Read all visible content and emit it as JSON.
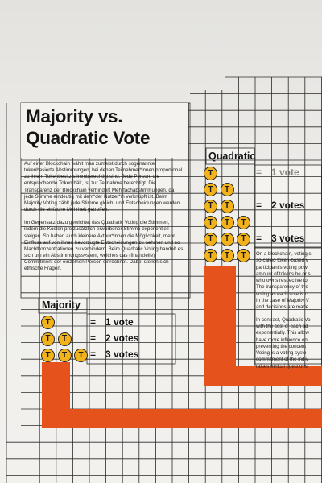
{
  "title": {
    "line1": "Majority vs.",
    "line2": "Quadratic Vote"
  },
  "german_text": [
    "Auf einer Blockchain wählt man zumeist durch sogenannte tokenbasierte Abstimmungen, bei denen Teilnehmer*innen proportional zu ihrem Tokenbesitz stimmberechtigt sind. Jede Person, die entsprechende Token hält, ist zur Teilnahme berechtigt. Die Transparenz der Blockchain verhindert Mehrfachabstimmungen, da jede Stimme eindeutig mit dem*der Nutzer*in verknüpft ist. Beim Majority Voting zählt jede Stimme gleich, und Entscheidungen werden durch die einfache Mehrheit getroffen.",
    "Im Gegensatz dazu gewichtet das Quadratic Voting die Stimmen, indem die Kosten pro zusätzlich erworbener Stimme exponentiell steigen. So haben auch kleinere Akteur*innen die Möglichkeit, mehr Einfluss auf von ihnen bevorzugte Entscheidungen zu nehmen und so Machtkonzentrationen zu verhindern. Beim Quadratic Voting handelt es sich um ein Abstimmungssystem, welches das (finanzielle) Commitment der einzelnen Person einrechnet. Dabei stellen sich ethische Fragen."
  ],
  "english_lines": [
    [
      "On a blockchain, voting s",
      "so-called token-based v",
      "participant's voting pow",
      "amount of tokens he or s",
      "who owns respective to",
      "The transparency of the",
      "voting as each vote is cl",
      "In the case of Majority V",
      "and decisions are made"
    ],
    [
      "In contrast, Quadratic Vo",
      "with the cost of each ad",
      "exponentially. This allow",
      "have more influence on",
      "preventing the concent",
      "Voting is a voting syste",
      "commitment of the indiv",
      "raises ethical questions"
    ]
  ],
  "quadratic": {
    "label": "Quadratic",
    "token_symbol": "T",
    "rows": [
      {
        "tokens": 1,
        "equals": "=",
        "result": "1 vote"
      },
      {
        "tokens": 4,
        "equals": "=",
        "result": "2 votes"
      },
      {
        "tokens": 9,
        "equals": "=",
        "result": "3 votes"
      }
    ]
  },
  "majority": {
    "label": "Majority",
    "token_symbol": "T",
    "rows": [
      {
        "tokens": 1,
        "equals": "=",
        "result": "1 vote"
      },
      {
        "tokens": 2,
        "equals": "=",
        "result": "2 votes"
      },
      {
        "tokens": 3,
        "equals": "=",
        "result": "3 votes"
      }
    ]
  },
  "colors": {
    "token_fill": "#f2b21c",
    "bar_orange": "#e5521c",
    "grid_line": "#2a2a2a",
    "panel": "#f4f3f0",
    "faded_text": "#8a8a82"
  },
  "icons": [
    "voting-token-icon"
  ]
}
